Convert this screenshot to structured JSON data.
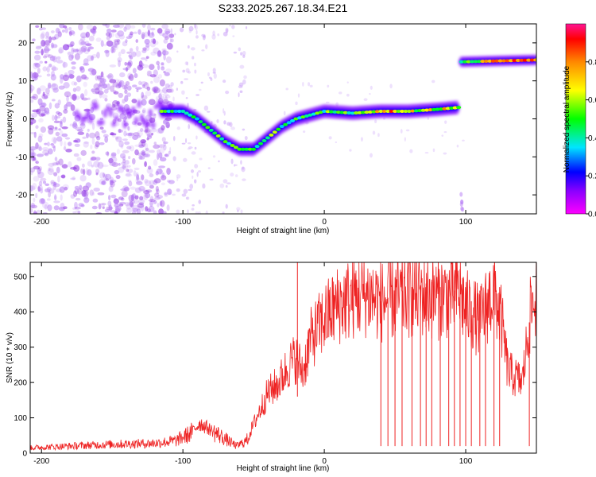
{
  "title": "S233.2025.267.18.34.E21",
  "chart_data": [
    {
      "type": "heatmap",
      "name": "spectrogram",
      "xlabel": "Height of straight line (km)",
      "ylabel": "Frequency (Hz)",
      "xlim": [
        -208,
        150
      ],
      "ylim": [
        -25,
        25
      ],
      "xticks": [
        -200,
        -100,
        0,
        100
      ],
      "yticks": [
        -20,
        -10,
        0,
        10,
        20
      ],
      "xtick_labels": [
        "-200",
        "-100",
        "0",
        "100"
      ],
      "ytick_labels": [
        "-20",
        "-10",
        "0",
        "10",
        "20"
      ],
      "colorbar": {
        "label": "Normalized spectral amplitude",
        "range": [
          0.0,
          1.0
        ],
        "ticks": [
          0.0,
          0.2,
          0.4,
          0.6,
          0.8
        ],
        "tick_labels": [
          "0.0",
          "0.2",
          "0.4",
          "0.6",
          "0.8"
        ],
        "colormap": [
          "#ff00ff",
          "#0000ff",
          "#00e5ff",
          "#00ff00",
          "#ffff00",
          "#ff8800",
          "#ff0000",
          "#ff1493"
        ]
      },
      "ridge": {
        "x": [
          -115,
          -100,
          -90,
          -80,
          -70,
          -60,
          -50,
          -40,
          -30,
          -20,
          -10,
          0,
          20,
          40,
          60,
          80,
          95
        ],
        "y": [
          2,
          2,
          0,
          -3,
          -6,
          -8,
          -8,
          -5,
          -2,
          0,
          1,
          2,
          1.5,
          2,
          2,
          2.5,
          3
        ]
      },
      "upper_band": {
        "x": [
          97,
          150
        ],
        "y": [
          15,
          15.5
        ]
      }
    },
    {
      "type": "line",
      "name": "snr",
      "xlabel": "Height of straight line (km)",
      "ylabel": "SNR (10 * v/v)",
      "xlim": [
        -208,
        150
      ],
      "ylim": [
        0,
        540
      ],
      "xticks": [
        -200,
        -100,
        0,
        100
      ],
      "yticks": [
        0,
        100,
        200,
        300,
        400,
        500
      ],
      "xtick_labels": [
        "-200",
        "-100",
        "0",
        "100"
      ],
      "ytick_labels": [
        "0",
        "100",
        "200",
        "300",
        "400",
        "500"
      ],
      "color": "#ee2222",
      "x": [
        -208,
        -180,
        -150,
        -120,
        -105,
        -95,
        -88,
        -80,
        -70,
        -62,
        -55,
        -48,
        -40,
        -32,
        -25,
        -20,
        -15,
        -10,
        -5,
        0,
        10,
        20,
        30,
        40,
        50,
        60,
        70,
        80,
        90,
        95,
        100,
        105,
        110,
        115,
        120,
        125,
        130,
        140,
        146,
        150
      ],
      "y": [
        15,
        20,
        25,
        28,
        35,
        55,
        85,
        65,
        40,
        20,
        35,
        100,
        170,
        200,
        250,
        270,
        230,
        320,
        350,
        380,
        420,
        440,
        450,
        430,
        440,
        445,
        450,
        440,
        450,
        460,
        410,
        395,
        370,
        420,
        460,
        380,
        230,
        200,
        400,
        450
      ],
      "spikes": {
        "x": [
          -19,
          40,
          45,
          50,
          55,
          62,
          68,
          72,
          76,
          82,
          88,
          92,
          96,
          100,
          104,
          110,
          114,
          120,
          124,
          145
        ],
        "low": [
          160,
          20,
          20,
          20,
          20,
          20,
          20,
          20,
          20,
          20,
          20,
          20,
          20,
          20,
          20,
          20,
          20,
          20,
          20,
          20
        ],
        "high": [
          540,
          430,
          440,
          450,
          460,
          470,
          475,
          480,
          485,
          470,
          465,
          460,
          520,
          440,
          430,
          460,
          480,
          500,
          470,
          370
        ]
      }
    }
  ]
}
